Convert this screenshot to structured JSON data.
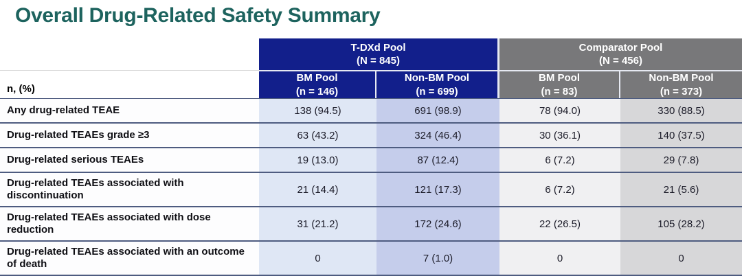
{
  "page": {
    "title": "Overall Drug-Related Safety Summary"
  },
  "colors": {
    "title_text": "#1d635e",
    "tdxd_header_bg": "#121f8b",
    "comparator_header_bg": "#78787a",
    "col_tdxd_bm": "#dfe7f5",
    "col_tdxd_nonbm": "#c5cdeb",
    "col_comp_bm": "#f0f0f2",
    "col_comp_nonbm": "#d7d7d9",
    "row_separator": "#4e5c80",
    "header_divider": "#e6e9f2"
  },
  "table": {
    "row_header_label": "n, (%)",
    "groups": [
      {
        "label": "T-DXd Pool",
        "n": "(N = 845)"
      },
      {
        "label": "Comparator Pool",
        "n": "(N = 456)"
      }
    ],
    "columns": [
      {
        "label": "BM Pool",
        "n": "(n = 146)"
      },
      {
        "label": "Non-BM Pool",
        "n": "(n = 699)"
      },
      {
        "label": "BM Pool",
        "n": "(n = 83)"
      },
      {
        "label": "Non-BM Pool",
        "n": "(n = 373)"
      }
    ],
    "rows": [
      {
        "label": "Any drug-related TEAE",
        "values": [
          "138 (94.5)",
          "691 (98.9)",
          "78 (94.0)",
          "330 (88.5)"
        ]
      },
      {
        "label": "Drug-related TEAEs grade ≥3",
        "values": [
          "63 (43.2)",
          "324 (46.4)",
          "30 (36.1)",
          "140 (37.5)"
        ]
      },
      {
        "label": "Drug-related serious TEAEs",
        "values": [
          "19 (13.0)",
          "87 (12.4)",
          "6 (7.2)",
          "29 (7.8)"
        ]
      },
      {
        "label": "Drug-related TEAEs associated with discontinuation",
        "values": [
          "21 (14.4)",
          "121 (17.3)",
          "6 (7.2)",
          "21 (5.6)"
        ]
      },
      {
        "label": "Drug-related TEAEs associated with dose reduction",
        "values": [
          "31 (21.2)",
          "172 (24.6)",
          "22 (26.5)",
          "105 (28.2)"
        ]
      },
      {
        "label": "Drug-related TEAEs associated with an outcome of death",
        "values": [
          "0",
          "7 (1.0)",
          "0",
          "0"
        ]
      }
    ]
  }
}
